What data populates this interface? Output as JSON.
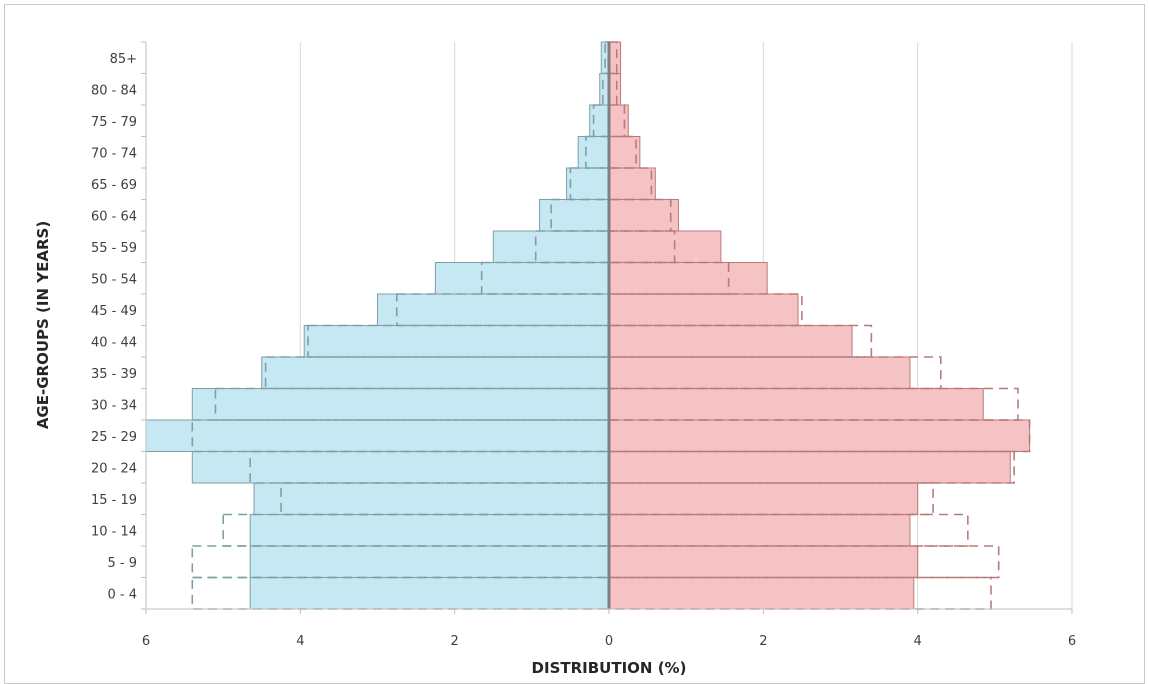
{
  "chart_data": {
    "type": "population-pyramid",
    "xlabel": "DISTRIBUTION (%)",
    "ylabel": "AGE-GROUPS (IN YEARS)",
    "categories": [
      "0 - 4",
      "5 - 9",
      "10 - 14",
      "15 - 19",
      "20 - 24",
      "25 - 29",
      "30 - 34",
      "35 - 39",
      "40 - 44",
      "45 - 49",
      "50 - 54",
      "55 - 59",
      "60 - 64",
      "65 - 69",
      "70 - 74",
      "75 - 79",
      "80 - 84",
      "85+"
    ],
    "xlim": [
      -6,
      6
    ],
    "x_ticks": [
      6,
      4,
      2,
      0,
      2,
      4,
      6
    ],
    "grid": true,
    "colors": {
      "male_fill": "#c6e8f2",
      "male_edge": "#7f9fa8",
      "female_fill": "#f5c3c3",
      "female_edge": "#b87b7b",
      "center_line": "#7f7f7f",
      "grid": "#d9d9d9"
    },
    "series": [
      {
        "side": "left",
        "style": "filled",
        "values": [
          4.65,
          4.65,
          4.65,
          4.6,
          5.4,
          6.0,
          5.4,
          4.5,
          3.95,
          3.0,
          2.25,
          1.5,
          0.9,
          0.55,
          0.4,
          0.25,
          0.12,
          0.1
        ]
      },
      {
        "side": "left",
        "style": "dashed",
        "values": [
          5.4,
          5.4,
          5.0,
          4.25,
          4.65,
          5.4,
          5.1,
          4.45,
          3.9,
          2.75,
          1.65,
          0.95,
          0.75,
          0.5,
          0.3,
          0.2,
          0.08,
          0.05
        ]
      },
      {
        "side": "right",
        "style": "filled",
        "values": [
          3.95,
          4.0,
          3.9,
          4.0,
          5.2,
          5.45,
          4.85,
          3.9,
          3.15,
          2.45,
          2.05,
          1.45,
          0.9,
          0.6,
          0.4,
          0.25,
          0.15,
          0.15
        ]
      },
      {
        "side": "right",
        "style": "dashed",
        "values": [
          4.95,
          5.05,
          4.65,
          4.2,
          5.25,
          5.45,
          5.3,
          4.3,
          3.4,
          2.5,
          1.55,
          0.85,
          0.8,
          0.55,
          0.35,
          0.2,
          0.1,
          0.1
        ]
      }
    ]
  }
}
